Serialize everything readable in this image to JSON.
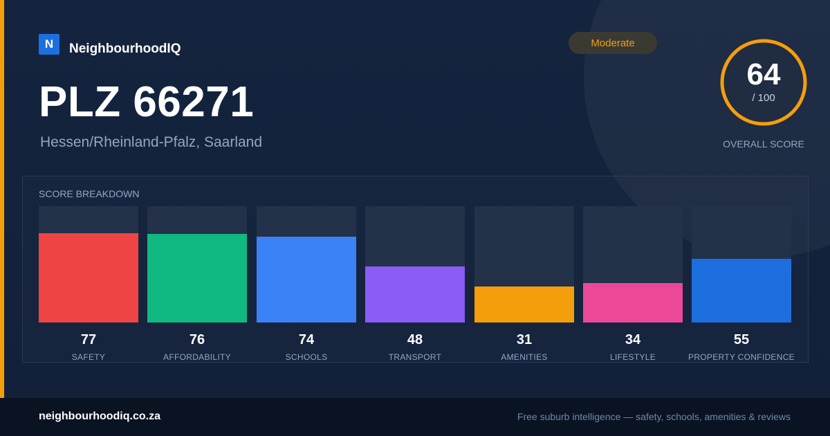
{
  "brand": {
    "logo_letter": "N",
    "name": "NeighbourhoodIQ"
  },
  "location": {
    "title": "PLZ 66271",
    "subtitle": "Hessen/Rheinland-Pfalz, Saarland"
  },
  "rating_badge": "Moderate",
  "overall": {
    "score": "64",
    "max": "/ 100",
    "label": "OVERALL SCORE",
    "fraction": 0.64
  },
  "colors": {
    "accent": "#f59e0b",
    "brand": "#1d6fe0",
    "background": "#15243e"
  },
  "breakdown": {
    "title": "SCORE BREAKDOWN",
    "items": [
      {
        "label": "SAFETY",
        "value": "77",
        "score": 77,
        "color": "#ef4444"
      },
      {
        "label": "AFFORDABILITY",
        "value": "76",
        "score": 76,
        "color": "#10b981"
      },
      {
        "label": "SCHOOLS",
        "value": "74",
        "score": 74,
        "color": "#3b82f6"
      },
      {
        "label": "TRANSPORT",
        "value": "48",
        "score": 48,
        "color": "#8b5cf6"
      },
      {
        "label": "AMENITIES",
        "value": "31",
        "score": 31,
        "color": "#f59e0b"
      },
      {
        "label": "LIFESTYLE",
        "value": "34",
        "score": 34,
        "color": "#ec4899"
      },
      {
        "label": "PROPERTY CONFIDENCE",
        "value": "55",
        "score": 55,
        "color": "#1d6fe0"
      }
    ]
  },
  "footer": {
    "domain": "neighbourhoodiq.co.za",
    "tagline": "Free suburb intelligence — safety, schools, amenities & reviews"
  }
}
